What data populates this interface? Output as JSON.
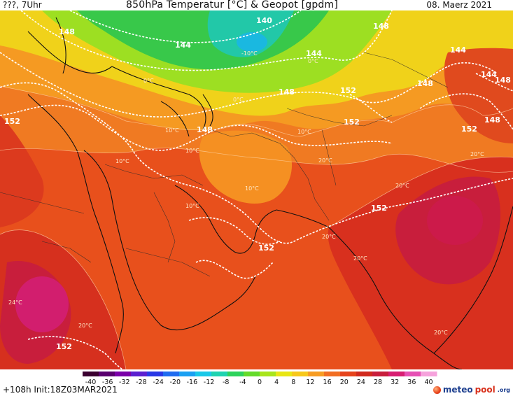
{
  "header": {
    "run_label": "???, 7Uhr",
    "title": "850hPa Temperatur [°C] & Geopot [gpdm]",
    "valid_date": "08. Maerz 2021"
  },
  "footer": {
    "forecast_info": "+108h  Init:18Z03MAR2021",
    "brand_main": "meteo",
    "brand_accent": "pool",
    "brand_suffix": ".org"
  },
  "scale": {
    "ticks": [
      "-40",
      "-36",
      "-32",
      "-28",
      "-24",
      "-20",
      "-16",
      "-12",
      "-8",
      "-4",
      "0",
      "4",
      "8",
      "12",
      "16",
      "20",
      "24",
      "28",
      "32",
      "36",
      "40"
    ],
    "colors": [
      "#3b0030",
      "#5a0070",
      "#7a00a8",
      "#5b1fd0",
      "#2838e6",
      "#1f6cf0",
      "#1aa0f2",
      "#19c8e8",
      "#1ed3b0",
      "#2dd35c",
      "#64db2a",
      "#a8e51c",
      "#e8e614",
      "#f7c81a",
      "#f79c22",
      "#f26e22",
      "#e6441c",
      "#d12a1e",
      "#c81e3c",
      "#d81e72",
      "#e650b4",
      "#f6a2dc"
    ]
  },
  "map": {
    "geopotential_labels": [
      {
        "text": "148"
      },
      {
        "text": "140"
      },
      {
        "text": "144"
      },
      {
        "text": "148"
      },
      {
        "text": "144"
      },
      {
        "text": "144"
      },
      {
        "text": "148"
      },
      {
        "text": "148"
      },
      {
        "text": "152"
      },
      {
        "text": "148"
      },
      {
        "text": "144"
      },
      {
        "text": "148"
      },
      {
        "text": "152"
      },
      {
        "text": "152"
      },
      {
        "text": "152"
      },
      {
        "text": "152"
      },
      {
        "text": "148"
      },
      {
        "text": "152"
      },
      {
        "text": "152"
      }
    ],
    "temperature_labels": [
      {
        "text": "0°C"
      },
      {
        "text": "-10°C"
      },
      {
        "text": "0°C"
      },
      {
        "text": "0°C"
      },
      {
        "text": "10°C"
      },
      {
        "text": "10°C"
      },
      {
        "text": "10°C"
      },
      {
        "text": "10°C"
      },
      {
        "text": "10°C"
      },
      {
        "text": "20°C"
      },
      {
        "text": "20°C"
      },
      {
        "text": "20°C"
      },
      {
        "text": "24°C"
      },
      {
        "text": "20°C"
      },
      {
        "text": "20°C"
      },
      {
        "text": "10°C"
      },
      {
        "text": "20°C"
      },
      {
        "text": "20°C"
      }
    ]
  }
}
